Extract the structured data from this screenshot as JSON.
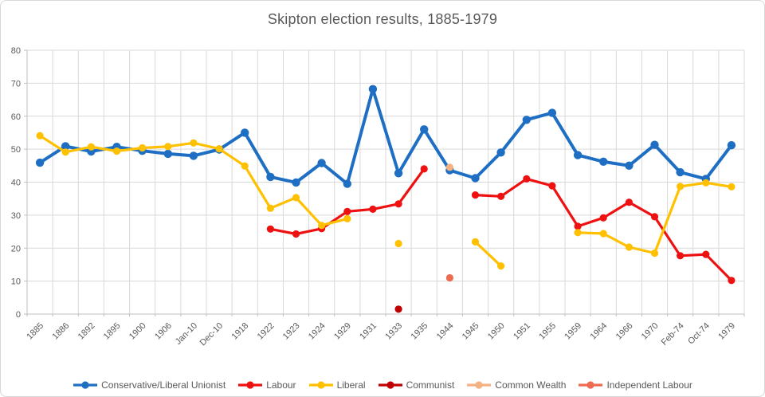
{
  "chart_data": {
    "type": "line",
    "title": "Skipton election results, 1885-1979",
    "xlabel": "",
    "ylabel": "",
    "ylim": [
      0,
      80
    ],
    "yticks": [
      0,
      10,
      20,
      30,
      40,
      50,
      60,
      70,
      80
    ],
    "grid": true,
    "legend_position": "bottom",
    "categories": [
      "1885",
      "1886",
      "1892",
      "1895",
      "1900",
      "1906",
      "Jan-10",
      "Dec-10",
      "1918",
      "1922",
      "1923",
      "1924",
      "1929",
      "1931",
      "1933",
      "1935",
      "1944",
      "1945",
      "1950",
      "1951",
      "1955",
      "1959",
      "1964",
      "1966",
      "1970",
      "Feb-74",
      "Oct-74",
      "1979"
    ],
    "series": [
      {
        "name": "Conservative/Liberal Unionist",
        "color": "#1e6fc4",
        "values": [
          45.9,
          50.9,
          49.3,
          50.7,
          49.5,
          48.6,
          48.0,
          49.9,
          55.0,
          41.6,
          39.9,
          45.8,
          39.5,
          68.2,
          42.7,
          56.0,
          43.6,
          41.2,
          49.0,
          58.9,
          61.0,
          48.2,
          46.2,
          45.0,
          51.3,
          43.0,
          41.0,
          51.2
        ]
      },
      {
        "name": "Labour",
        "color": "#ee1111",
        "values": [
          null,
          null,
          null,
          null,
          null,
          null,
          null,
          null,
          null,
          25.8,
          24.3,
          25.9,
          31.1,
          31.8,
          33.4,
          44.0,
          null,
          36.1,
          35.7,
          41.0,
          38.9,
          26.6,
          29.2,
          33.9,
          29.5,
          17.7,
          18.1,
          10.2
        ]
      },
      {
        "name": "Liberal",
        "color": "#ffc000",
        "values": [
          54.1,
          49.1,
          50.7,
          49.4,
          50.4,
          50.8,
          51.9,
          50.1,
          44.9,
          32.1,
          35.3,
          26.9,
          28.9,
          null,
          21.4,
          null,
          null,
          21.9,
          14.6,
          null,
          null,
          24.7,
          24.4,
          20.3,
          18.5,
          38.7,
          39.8,
          38.6
        ]
      },
      {
        "name": "Communist",
        "color": "#c00000",
        "values": [
          null,
          null,
          null,
          null,
          null,
          null,
          null,
          null,
          null,
          null,
          null,
          null,
          null,
          null,
          1.5,
          null,
          null,
          null,
          null,
          null,
          null,
          null,
          null,
          null,
          null,
          null,
          null,
          null
        ]
      },
      {
        "name": "Common Wealth",
        "color": "#f4b183",
        "values": [
          null,
          null,
          null,
          null,
          null,
          null,
          null,
          null,
          null,
          null,
          null,
          null,
          null,
          null,
          null,
          null,
          44.5,
          null,
          null,
          null,
          null,
          null,
          null,
          null,
          null,
          null,
          null,
          null
        ]
      },
      {
        "name": "Independent Labour",
        "color": "#ee6a50",
        "values": [
          null,
          null,
          null,
          null,
          null,
          null,
          null,
          null,
          null,
          null,
          null,
          null,
          null,
          null,
          null,
          null,
          11.0,
          null,
          null,
          null,
          null,
          null,
          null,
          null,
          null,
          null,
          null,
          null
        ]
      }
    ]
  }
}
